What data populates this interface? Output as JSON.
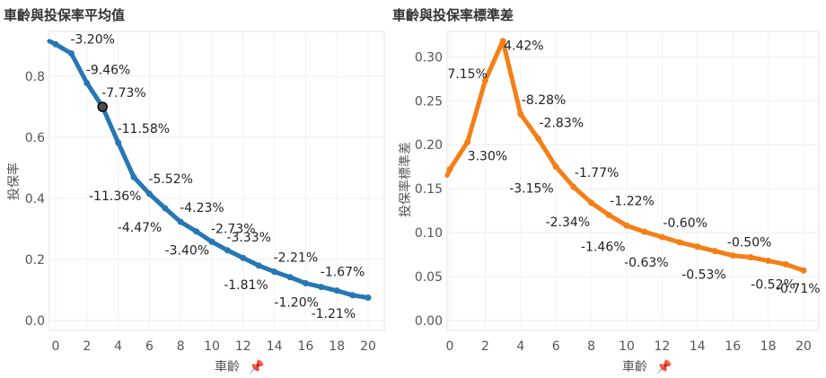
{
  "chart_data": [
    {
      "type": "line",
      "title": "車齡與投保率平均值",
      "xlabel": "車齡",
      "ylabel": "投保率",
      "pin_icon": "pin-icon",
      "color": "#2677b4",
      "x": [
        0,
        1,
        2,
        3,
        4,
        5,
        6,
        7,
        8,
        9,
        10,
        11,
        12,
        13,
        14,
        15,
        16,
        17,
        18,
        19,
        20
      ],
      "values": [
        0.905,
        0.875,
        0.778,
        0.7,
        0.583,
        0.47,
        0.415,
        0.368,
        0.323,
        0.292,
        0.258,
        0.23,
        0.205,
        0.18,
        0.16,
        0.142,
        0.122,
        0.11,
        0.098,
        0.083,
        0.075
      ],
      "highlight_index": 3,
      "labels": [
        "",
        "-3.20%",
        "-9.46%",
        "-7.73%",
        "-11.58%",
        "-11.36%",
        "-5.52%",
        "-4.47%",
        "-4.23%",
        "-3.40%",
        "-2.73%",
        "-3.33%",
        "",
        "-1.81%",
        "-2.21%",
        "",
        "-1.20%",
        "-1.67%",
        "",
        "-1.21%",
        ""
      ],
      "xlim": [
        0,
        20
      ],
      "ylim": [
        0,
        0.95
      ],
      "xticks": [
        "0",
        "2",
        "4",
        "6",
        "8",
        "10",
        "12",
        "14",
        "16",
        "18",
        "20"
      ],
      "yticks": [
        "0.0",
        "0.2",
        "0.4",
        "0.6",
        "0.8"
      ],
      "grid": true
    },
    {
      "type": "line",
      "title": "車齡與投保率標準差",
      "xlabel": "車齡",
      "ylabel": "投保率標準差",
      "pin_icon": "pin-icon",
      "color": "#f47f16",
      "x": [
        0,
        1,
        2,
        3,
        4,
        5,
        6,
        7,
        8,
        9,
        10,
        11,
        12,
        13,
        14,
        15,
        16,
        17,
        18,
        19,
        20
      ],
      "values": [
        0.172,
        0.203,
        0.273,
        0.318,
        0.235,
        0.207,
        0.175,
        0.152,
        0.134,
        0.12,
        0.108,
        0.101,
        0.095,
        0.089,
        0.084,
        0.079,
        0.074,
        0.072,
        0.068,
        0.064,
        0.057
      ],
      "labels": [
        "",
        "3.30%",
        "7.15%",
        "4.42%",
        "-8.28%",
        "-2.83%",
        "-3.15%",
        "-1.77%",
        "-2.34%",
        "-1.22%",
        "-1.46%",
        "",
        "-0.60%",
        "-0.63%",
        "",
        "",
        "-0.53%",
        "-0.50%",
        "",
        "-0.52%",
        "-0.71%"
      ],
      "xlim": [
        0,
        20
      ],
      "ylim": [
        0,
        0.33
      ],
      "xticks": [
        "0",
        "2",
        "4",
        "6",
        "8",
        "10",
        "12",
        "14",
        "16",
        "18",
        "20"
      ],
      "yticks": [
        "0.00",
        "0.05",
        "0.10",
        "0.15",
        "0.20",
        "0.25",
        "0.30"
      ],
      "grid": true
    }
  ]
}
